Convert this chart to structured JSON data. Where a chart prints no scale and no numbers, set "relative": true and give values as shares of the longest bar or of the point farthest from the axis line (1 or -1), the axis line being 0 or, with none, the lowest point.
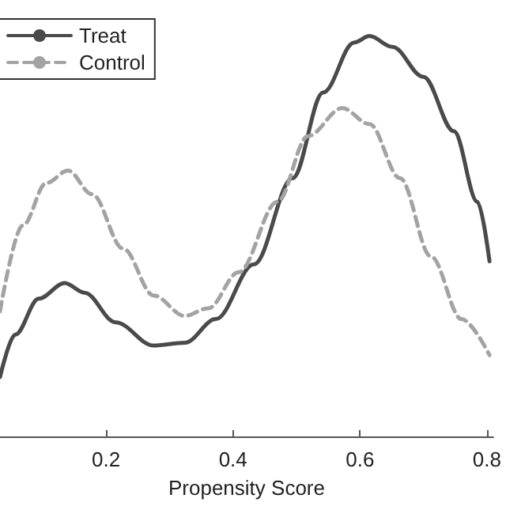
{
  "chart_data": {
    "type": "line",
    "xlabel": "Propensity Score",
    "relative": true,
    "xlim": [
      0.033,
      0.81
    ],
    "xticks": [
      0.2,
      0.4,
      0.6,
      0.8
    ],
    "legend": "top left",
    "marker": "none",
    "series": [
      {
        "name": "Treat",
        "color": "#4a4a4a",
        "line_style": "solid",
        "x": [
          0.033,
          0.057,
          0.094,
          0.135,
          0.166,
          0.215,
          0.275,
          0.324,
          0.373,
          0.433,
          0.494,
          0.542,
          0.591,
          0.615,
          0.651,
          0.7,
          0.748,
          0.785,
          0.804
        ],
        "values": [
          0.148,
          0.254,
          0.344,
          0.383,
          0.359,
          0.285,
          0.227,
          0.234,
          0.293,
          0.43,
          0.645,
          0.859,
          0.984,
          1.0,
          0.973,
          0.898,
          0.762,
          0.586,
          0.4375
        ]
      },
      {
        "name": "Control",
        "color": "#a3a3a3",
        "line_style": "dashed",
        "x": [
          0.033,
          0.069,
          0.106,
          0.14,
          0.178,
          0.227,
          0.275,
          0.324,
          0.361,
          0.409,
          0.47,
          0.518,
          0.572,
          0.615,
          0.663,
          0.712,
          0.76,
          0.804
        ],
        "values": [
          0.3125,
          0.527,
          0.633,
          0.664,
          0.605,
          0.469,
          0.352,
          0.301,
          0.32,
          0.41,
          0.586,
          0.75,
          0.82,
          0.78,
          0.645,
          0.449,
          0.293,
          0.203
        ]
      }
    ]
  }
}
